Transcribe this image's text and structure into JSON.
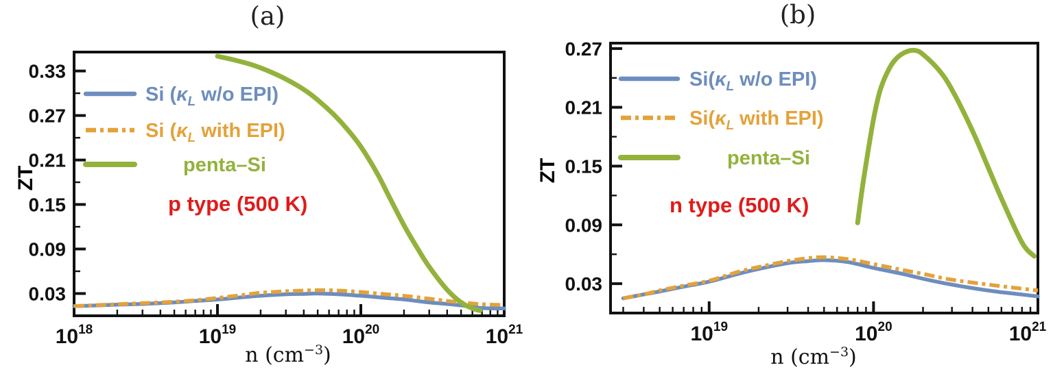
{
  "figure": {
    "background": "#ffffff",
    "colors": {
      "si_no_epi": "#6d8dbe",
      "si_with_epi": "#e3a23a",
      "penta_si": "#93b23c",
      "annotation_red": "#e01b1b",
      "axis": "#111111"
    }
  },
  "chart_data": [
    {
      "panel": "a",
      "type": "line",
      "title": "(a)",
      "ylabel": "ZT",
      "xlabel_parts": {
        "pre": "n (cm",
        "sup": "−3",
        "post": ")"
      },
      "annotation": {
        "text": "p type (500 K)",
        "color": "#e01b1b"
      },
      "x_scale": "log",
      "xlim_log": [
        18,
        21
      ],
      "ylim": [
        0,
        0.3555
      ],
      "x_ticks": [
        "10^18",
        "10^19",
        "10^20",
        "10^21"
      ],
      "y_major_ticks": [
        "0.03",
        "0.09",
        "0.15",
        "0.21",
        "0.27",
        "0.33"
      ],
      "y_minor_ticks": [
        0.06,
        0.12,
        0.18,
        0.24,
        0.3
      ],
      "grid": false,
      "legend_position": "upper-left",
      "series": [
        {
          "name": "Si (kappa_L w/o EPI)",
          "label_parts": {
            "pre": "Si (",
            "kappa": "κ",
            "sub": "L",
            "post": " w/o EPI)"
          },
          "color": "#6d8dbe",
          "style": "solid",
          "x": [
            1e+18,
            1.5e+18,
            2e+18,
            3e+18,
            5e+18,
            7e+18,
            1e+19,
            1.5e+19,
            2e+19,
            3e+19,
            4e+19,
            5e+19,
            7e+19,
            1e+20,
            1.5e+20,
            2e+20,
            3e+20,
            4e+20,
            5e+20,
            6.5e+20,
            8e+20,
            1e+21
          ],
          "y": [
            0.013,
            0.014,
            0.015,
            0.016,
            0.018,
            0.02,
            0.022,
            0.025,
            0.027,
            0.029,
            0.0295,
            0.03,
            0.029,
            0.027,
            0.024,
            0.022,
            0.018,
            0.016,
            0.014,
            0.011,
            0.01,
            0.01
          ]
        },
        {
          "name": "Si (kappa_L with EPI)",
          "label_parts": {
            "pre": "Si (",
            "kappa": "κ",
            "sub": "L",
            "post": " with EPI)"
          },
          "color": "#e3a23a",
          "style": "dashdot",
          "x": [
            1e+18,
            1.5e+18,
            2e+18,
            3e+18,
            5e+18,
            7e+18,
            1e+19,
            1.5e+19,
            2e+19,
            3e+19,
            4e+19,
            5e+19,
            7e+19,
            1e+20,
            1.5e+20,
            2e+20,
            3e+20,
            4e+20,
            5e+20,
            6.5e+20,
            8e+20,
            1e+21
          ],
          "y": [
            0.013,
            0.0145,
            0.0155,
            0.017,
            0.019,
            0.021,
            0.024,
            0.028,
            0.031,
            0.033,
            0.034,
            0.0345,
            0.034,
            0.032,
            0.029,
            0.027,
            0.023,
            0.02,
            0.018,
            0.016,
            0.015,
            0.0145
          ]
        },
        {
          "name": "penta-Si",
          "label_parts": {
            "pre": "penta–Si",
            "kappa": "",
            "sub": "",
            "post": ""
          },
          "color": "#93b23c",
          "style": "solid-thick",
          "x": [
            1e+19,
            1.3e+19,
            1.7e+19,
            2.2e+19,
            3e+19,
            4e+19,
            5e+19,
            6.5e+19,
            8e+19,
            1e+20,
            1.3e+20,
            1.6e+20,
            2e+20,
            2.5e+20,
            3e+20,
            4e+20,
            5e+20,
            6e+20,
            6.8e+20
          ],
          "y": [
            0.35,
            0.345,
            0.339,
            0.331,
            0.319,
            0.305,
            0.291,
            0.271,
            0.252,
            0.228,
            0.192,
            0.158,
            0.122,
            0.09,
            0.066,
            0.035,
            0.018,
            0.01,
            0.007
          ]
        }
      ]
    },
    {
      "panel": "b",
      "type": "line",
      "title": "(b)",
      "ylabel": "ZT",
      "xlabel_parts": {
        "pre": "n (cm",
        "sup": "−3",
        "post": ")"
      },
      "annotation": {
        "text": "n type (500 K)",
        "color": "#e01b1b"
      },
      "x_scale": "log",
      "xlim_log": [
        18.4,
        21
      ],
      "ylim": [
        0,
        0.2755
      ],
      "x_ticks": [
        "10^19",
        "10^20",
        "10^21"
      ],
      "y_major_ticks": [
        "0.03",
        "0.09",
        "0.15",
        "0.21",
        "0.27"
      ],
      "y_minor_ticks": [
        0.06,
        0.12,
        0.18,
        0.24
      ],
      "grid": false,
      "legend_position": "upper-left",
      "series": [
        {
          "name": "Si(kappa_L w/o EPI)",
          "label_parts": {
            "pre": "Si(",
            "kappa": "κ",
            "sub": "L",
            "post": " w/o EPI)"
          },
          "color": "#6d8dbe",
          "style": "solid",
          "x": [
            3e+18,
            4e+18,
            5e+18,
            7e+18,
            1e+19,
            1.5e+19,
            2e+19,
            3e+19,
            4e+19,
            5e+19,
            7e+19,
            1e+20,
            1.5e+20,
            2e+20,
            3e+20,
            5e+20,
            7e+20,
            1e+21
          ],
          "y": [
            0.015,
            0.019,
            0.022,
            0.027,
            0.032,
            0.04,
            0.045,
            0.051,
            0.053,
            0.054,
            0.052,
            0.046,
            0.04,
            0.035,
            0.029,
            0.023,
            0.02,
            0.017
          ]
        },
        {
          "name": "Si(kappa_L with EPI)",
          "label_parts": {
            "pre": "Si(",
            "kappa": "κ",
            "sub": "L",
            "post": " with EPI)"
          },
          "color": "#e3a23a",
          "style": "dashdot",
          "x": [
            3e+18,
            4e+18,
            5e+18,
            7e+18,
            1e+19,
            1.5e+19,
            2e+19,
            3e+19,
            4e+19,
            5e+19,
            7e+19,
            1e+20,
            1.5e+20,
            2e+20,
            3e+20,
            5e+20,
            7e+20,
            1e+21
          ],
          "y": [
            0.015,
            0.019,
            0.023,
            0.028,
            0.033,
            0.042,
            0.047,
            0.053,
            0.056,
            0.057,
            0.055,
            0.05,
            0.044,
            0.04,
            0.034,
            0.029,
            0.026,
            0.023
          ]
        },
        {
          "name": "penta-Si",
          "label_parts": {
            "pre": "penta–Si",
            "kappa": "",
            "sub": "",
            "post": ""
          },
          "color": "#93b23c",
          "style": "solid-thick",
          "x": [
            8e+19,
            8.5e+19,
            9e+19,
            1e+20,
            1.1e+20,
            1.25e+20,
            1.4e+20,
            1.6e+20,
            1.8e+20,
            2e+20,
            2.5e+20,
            3e+20,
            4e+20,
            5e+20,
            6e+20,
            8e+20,
            9.5e+20
          ],
          "y": [
            0.092,
            0.125,
            0.152,
            0.198,
            0.228,
            0.25,
            0.261,
            0.267,
            0.268,
            0.264,
            0.248,
            0.228,
            0.186,
            0.148,
            0.117,
            0.072,
            0.058
          ]
        }
      ]
    }
  ]
}
